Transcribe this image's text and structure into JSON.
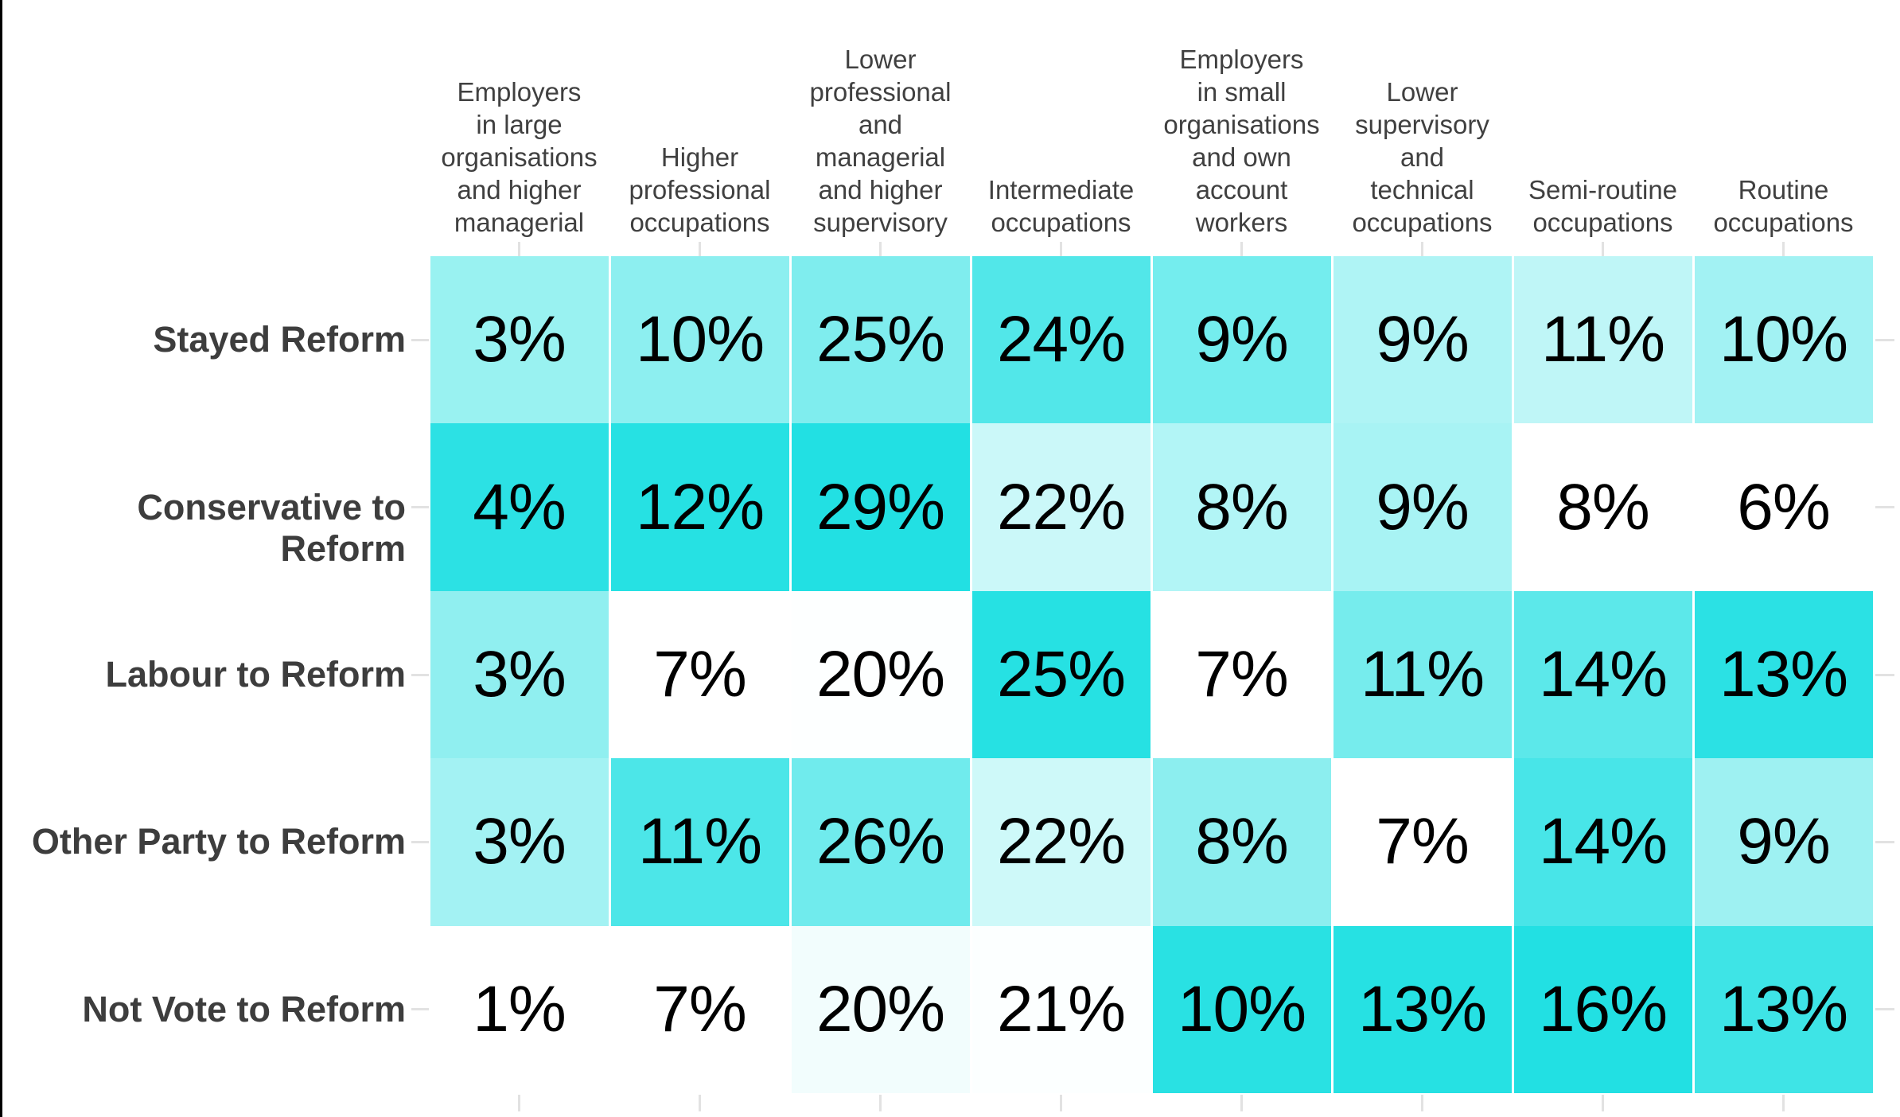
{
  "chart_data": {
    "type": "heatmap",
    "title": "",
    "xlabel": "",
    "ylabel": "",
    "legend_position": "none",
    "gridlines": "off",
    "columns": [
      "Employers\nin large\norganisations\nand higher\nmanagerial",
      "Higher\nprofessional\noccupations",
      "Lower\nprofessional\nand\nmanagerial\nand higher\nsupervisory",
      "Intermediate\noccupations",
      "Employers\nin small\norganisations\nand own\naccount\nworkers",
      "Lower\nsupervisory\nand\ntechnical\noccupations",
      "Semi-routine\noccupations",
      "Routine\noccupations"
    ],
    "rows": [
      "Stayed Reform",
      "Conservative to Reform",
      "Labour to Reform",
      "Other Party to Reform",
      "Not Vote to Reform"
    ],
    "values": [
      [
        3,
        10,
        25,
        24,
        9,
        9,
        11,
        10
      ],
      [
        4,
        12,
        29,
        22,
        8,
        9,
        8,
        6
      ],
      [
        3,
        7,
        20,
        25,
        7,
        11,
        14,
        13
      ],
      [
        3,
        11,
        26,
        22,
        8,
        7,
        14,
        9
      ],
      [
        1,
        7,
        20,
        21,
        10,
        13,
        16,
        13
      ]
    ],
    "cell_labels": [
      [
        "3%",
        "10%",
        "25%",
        "24%",
        "9%",
        "9%",
        "11%",
        "10%"
      ],
      [
        "4%",
        "12%",
        "29%",
        "22%",
        "8%",
        "9%",
        "8%",
        "6%"
      ],
      [
        "3%",
        "7%",
        "20%",
        "25%",
        "7%",
        "11%",
        "14%",
        "13%"
      ],
      [
        "3%",
        "11%",
        "26%",
        "22%",
        "8%",
        "7%",
        "14%",
        "9%"
      ],
      [
        "1%",
        "7%",
        "20%",
        "21%",
        "10%",
        "13%",
        "16%",
        "13%"
      ]
    ],
    "cell_colors": [
      [
        "#99F2F1",
        "#8DEFF0",
        "#7FEDEE",
        "#52E7E9",
        "#74EDEE",
        "#AFF4F5",
        "#BFF6F7",
        "#A2F2F3"
      ],
      [
        "#2CE1E4",
        "#26E1E3",
        "#22E0E3",
        "#CBF8F9",
        "#B2F5F6",
        "#A8F3F4",
        "#FFFFFF",
        "#FFFFFF"
      ],
      [
        "#90EFF0",
        "#FFFFFF",
        "#FDFFFF",
        "#26E1E3",
        "#FFFFFF",
        "#76ECED",
        "#5CE8EA",
        "#2BE1E4"
      ],
      [
        "#A3F2F3",
        "#4CE6E8",
        "#70EBED",
        "#CEF9F9",
        "#8CEEEF",
        "#FFFFFF",
        "#48E5E8",
        "#9EF1F2"
      ],
      [
        "#FFFFFF",
        "#FFFFFF",
        "#F2FDFD",
        "#FCFFFF",
        "#29E1E3",
        "#26E1E3",
        "#22E0E3",
        "#3EE4E6"
      ]
    ],
    "colorscale": {
      "low": "#FFFFFF",
      "high": "#22E0E3",
      "normalization": "per-column"
    }
  },
  "colors": {
    "background": "#FFFFFF",
    "frame_border": "#000000",
    "header_text": "#404040",
    "row_label_text": "#3D3D3D",
    "value_text": "#000000",
    "tick": "#E2E2E2"
  }
}
